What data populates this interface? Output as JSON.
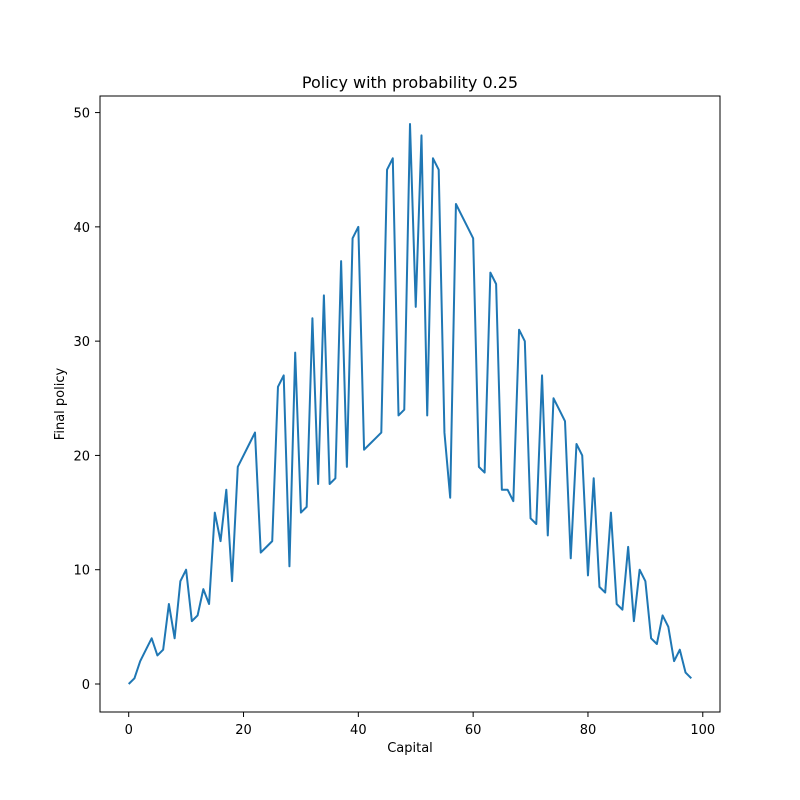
{
  "chart_data": {
    "type": "line",
    "title": "Policy with probability 0.25",
    "xlabel": "Capital",
    "ylabel": "Final policy",
    "xlim": [
      -5,
      103
    ],
    "ylim": [
      -2.45,
      51.45
    ],
    "xticks": [
      0,
      20,
      40,
      60,
      80,
      100
    ],
    "yticks": [
      0,
      10,
      20,
      30,
      40,
      50
    ],
    "grid": false,
    "series": [
      {
        "color": "#1f77b4",
        "x": [
          0,
          1,
          2,
          3,
          4,
          5,
          6,
          7,
          8,
          9,
          10,
          11,
          12,
          13,
          14,
          15,
          16,
          17,
          18,
          19,
          20,
          21,
          22,
          23,
          24,
          25,
          26,
          27,
          28,
          29,
          30,
          31,
          32,
          33,
          34,
          35,
          36,
          37,
          38,
          39,
          40,
          41,
          42,
          43,
          44,
          45,
          46,
          47,
          48,
          49,
          50,
          51,
          52,
          53,
          54,
          55,
          56,
          57,
          58,
          59,
          60,
          61,
          62,
          63,
          64,
          65,
          66,
          67,
          68,
          69,
          70,
          71,
          72,
          73,
          74,
          75,
          76,
          77,
          78,
          79,
          80,
          81,
          82,
          83,
          84,
          85,
          86,
          87,
          88,
          89,
          90,
          91,
          92,
          93,
          94,
          95,
          96,
          97,
          98
        ],
        "y": [
          0,
          0.5,
          2,
          3,
          4,
          2.5,
          3,
          7,
          4,
          9,
          10,
          5.5,
          6,
          8.3,
          7,
          15,
          12.5,
          17,
          9,
          19,
          20,
          21,
          22,
          11.5,
          12,
          12.5,
          26,
          27,
          10.3,
          29,
          15,
          15.5,
          32,
          17.5,
          34,
          17.5,
          18,
          37,
          19,
          39,
          40,
          20.5,
          21,
          21.5,
          22,
          45,
          46,
          23.5,
          24,
          49,
          33,
          48,
          23.5,
          46,
          45,
          22,
          16.3,
          42,
          41,
          40,
          39,
          19,
          18.5,
          36,
          35,
          17,
          17,
          16,
          31,
          30,
          14.5,
          14,
          27,
          13,
          25,
          24,
          23,
          11,
          21,
          20,
          9.5,
          18,
          8.5,
          8,
          15,
          7,
          6.5,
          12,
          5.5,
          10,
          9,
          4,
          3.5,
          6,
          5,
          2,
          3,
          1,
          0.5
        ]
      }
    ]
  }
}
